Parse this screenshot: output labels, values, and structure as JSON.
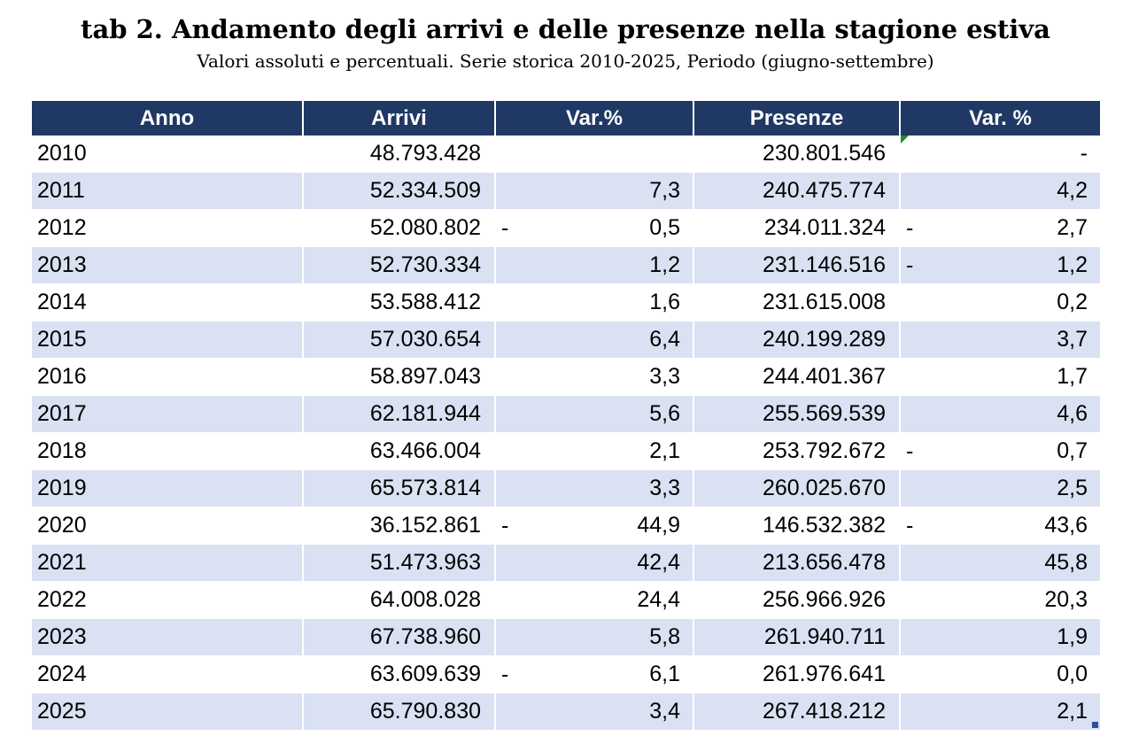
{
  "title": "tab 2. Andamento degli arrivi e delle presenze nella stagione estiva",
  "subtitle": "Valori assoluti e percentuali. Serie storica 2010-2025, Periodo (giugno-settembre)",
  "chart_data": {
    "type": "table",
    "columns": [
      "Anno",
      "Arrivi",
      "Var.%",
      "Presenze",
      "Var. %"
    ],
    "rows": [
      {
        "anno": "2010",
        "arrivi": "48.793.428",
        "var_arrivi_sign": "",
        "var_arrivi": "",
        "presenze": "230.801.546",
        "var_presenze_sign": "",
        "var_presenze": "-"
      },
      {
        "anno": "2011",
        "arrivi": "52.334.509",
        "var_arrivi_sign": "",
        "var_arrivi": "7,3",
        "presenze": "240.475.774",
        "var_presenze_sign": "",
        "var_presenze": "4,2"
      },
      {
        "anno": "2012",
        "arrivi": "52.080.802",
        "var_arrivi_sign": "-",
        "var_arrivi": "0,5",
        "presenze": "234.011.324",
        "var_presenze_sign": "-",
        "var_presenze": "2,7"
      },
      {
        "anno": "2013",
        "arrivi": "52.730.334",
        "var_arrivi_sign": "",
        "var_arrivi": "1,2",
        "presenze": "231.146.516",
        "var_presenze_sign": "-",
        "var_presenze": "1,2"
      },
      {
        "anno": "2014",
        "arrivi": "53.588.412",
        "var_arrivi_sign": "",
        "var_arrivi": "1,6",
        "presenze": "231.615.008",
        "var_presenze_sign": "",
        "var_presenze": "0,2"
      },
      {
        "anno": "2015",
        "arrivi": "57.030.654",
        "var_arrivi_sign": "",
        "var_arrivi": "6,4",
        "presenze": "240.199.289",
        "var_presenze_sign": "",
        "var_presenze": "3,7"
      },
      {
        "anno": "2016",
        "arrivi": "58.897.043",
        "var_arrivi_sign": "",
        "var_arrivi": "3,3",
        "presenze": "244.401.367",
        "var_presenze_sign": "",
        "var_presenze": "1,7"
      },
      {
        "anno": "2017",
        "arrivi": "62.181.944",
        "var_arrivi_sign": "",
        "var_arrivi": "5,6",
        "presenze": "255.569.539",
        "var_presenze_sign": "",
        "var_presenze": "4,6"
      },
      {
        "anno": "2018",
        "arrivi": "63.466.004",
        "var_arrivi_sign": "",
        "var_arrivi": "2,1",
        "presenze": "253.792.672",
        "var_presenze_sign": "-",
        "var_presenze": "0,7"
      },
      {
        "anno": "2019",
        "arrivi": "65.573.814",
        "var_arrivi_sign": "",
        "var_arrivi": "3,3",
        "presenze": "260.025.670",
        "var_presenze_sign": "",
        "var_presenze": "2,5"
      },
      {
        "anno": "2020",
        "arrivi": "36.152.861",
        "var_arrivi_sign": "-",
        "var_arrivi": "44,9",
        "presenze": "146.532.382",
        "var_presenze_sign": "-",
        "var_presenze": "43,6"
      },
      {
        "anno": "2021",
        "arrivi": "51.473.963",
        "var_arrivi_sign": "",
        "var_arrivi": "42,4",
        "presenze": "213.656.478",
        "var_presenze_sign": "",
        "var_presenze": "45,8"
      },
      {
        "anno": "2022",
        "arrivi": "64.008.028",
        "var_arrivi_sign": "",
        "var_arrivi": "24,4",
        "presenze": "256.966.926",
        "var_presenze_sign": "",
        "var_presenze": "20,3"
      },
      {
        "anno": "2023",
        "arrivi": "67.738.960",
        "var_arrivi_sign": "",
        "var_arrivi": "5,8",
        "presenze": "261.940.711",
        "var_presenze_sign": "",
        "var_presenze": "1,9"
      },
      {
        "anno": "2024",
        "arrivi": "63.609.639",
        "var_arrivi_sign": "-",
        "var_arrivi": "6,1",
        "presenze": "261.976.641",
        "var_presenze_sign": "",
        "var_presenze": "0,0"
      },
      {
        "anno": "2025",
        "arrivi": "65.790.830",
        "var_arrivi_sign": "",
        "var_arrivi": "3,4",
        "presenze": "267.418.212",
        "var_presenze_sign": "",
        "var_presenze": "2,1"
      }
    ]
  },
  "colors": {
    "header_bg": "#203864",
    "header_text": "#ffffff",
    "band_bg": "#d9e1f2",
    "error_indicator": "#1b8a2d",
    "selection_handle": "#2f4ea0"
  }
}
